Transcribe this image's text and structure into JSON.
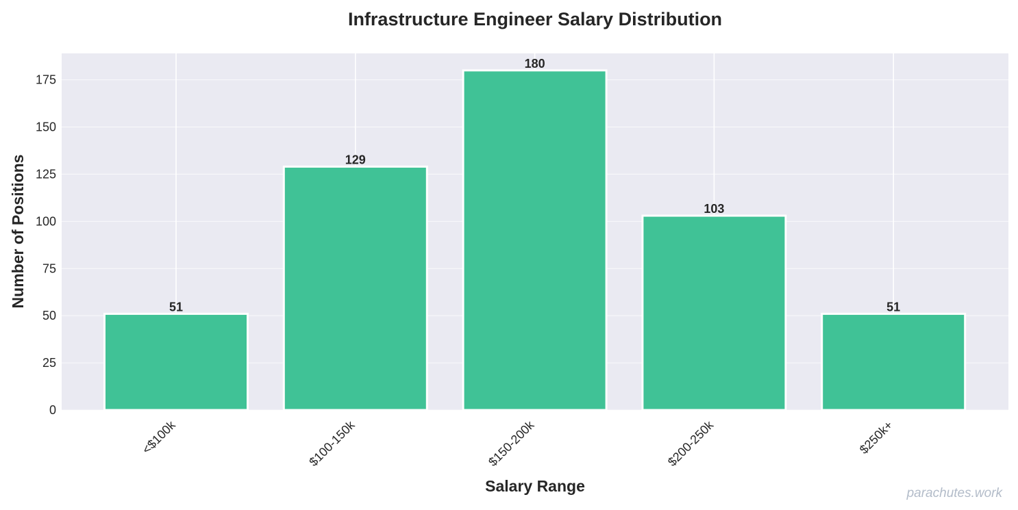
{
  "chart_data": {
    "type": "bar",
    "title": "Infrastructure Engineer Salary Distribution",
    "xlabel": "Salary Range",
    "ylabel": "Number of Positions",
    "categories": [
      "<$100k",
      "$100-150k",
      "$150-200k",
      "$200-250k",
      "$250k+"
    ],
    "values": [
      51,
      129,
      180,
      103,
      51
    ],
    "ylim": [
      0,
      189
    ],
    "yticks": [
      0,
      25,
      50,
      75,
      100,
      125,
      150,
      175
    ],
    "grid": true,
    "bar_color": "#3cc194",
    "background_color": "#eaeaf2"
  },
  "watermark": "parachutes.work"
}
